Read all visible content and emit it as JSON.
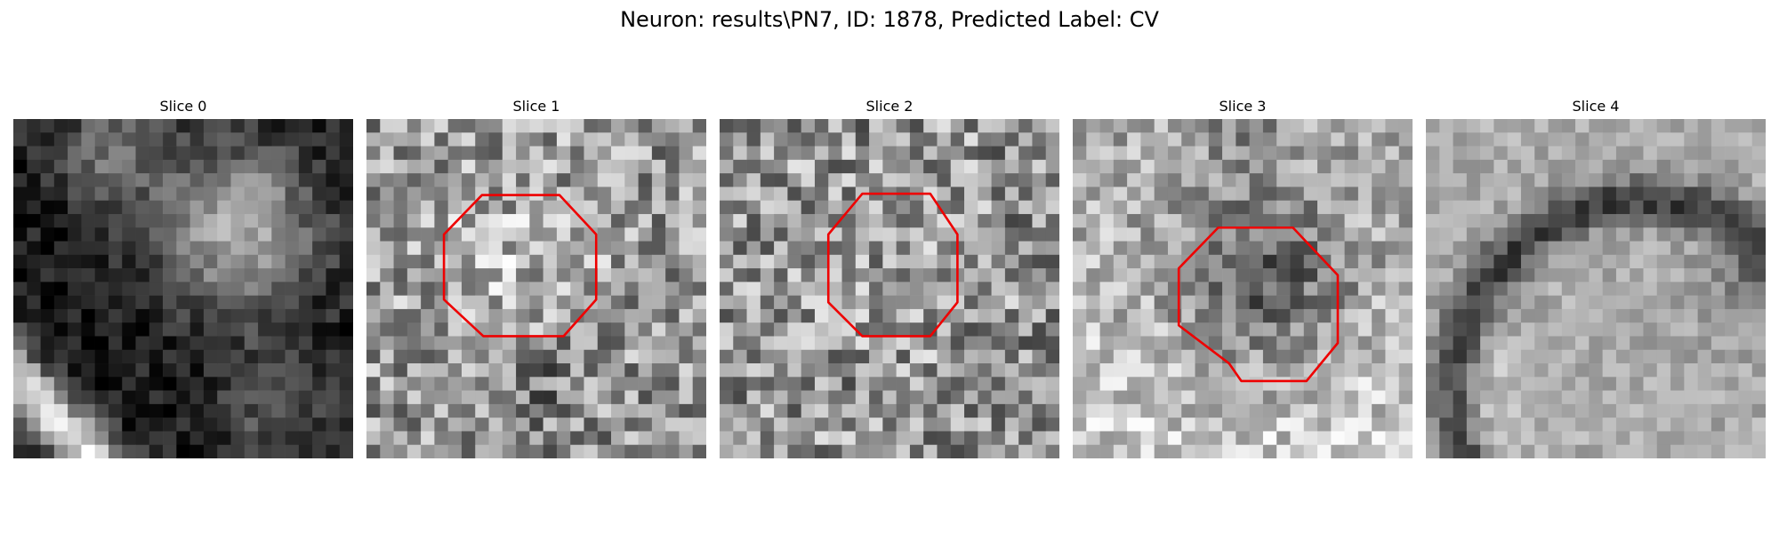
{
  "figure": {
    "title": "Neuron: results\\PN7, ID: 1878, Predicted Label: CV",
    "annotation_color": "#ee0000",
    "panels": [
      {
        "title": "Slice 0",
        "image": "grayscale-slice-bright-textured-cell-and-diagonal-bright-band",
        "has_outline": false
      },
      {
        "title": "Slice 1",
        "image": "grayscale-slice-noisy-texture-with-vesicle",
        "has_outline": true
      },
      {
        "title": "Slice 2",
        "image": "grayscale-slice-noisy-texture-with-vesicle",
        "has_outline": true
      },
      {
        "title": "Slice 3",
        "image": "grayscale-slice-dark-vesicle-center",
        "has_outline": true
      },
      {
        "title": "Slice 4",
        "image": "grayscale-slice-curved-dark-membrane",
        "has_outline": false
      }
    ]
  }
}
